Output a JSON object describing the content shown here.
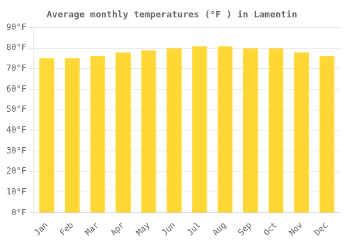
{
  "chart_data": {
    "type": "bar",
    "title": "Average monthly temperatures (°F ) in Lamentin",
    "categories": [
      "Jan",
      "Feb",
      "Mar",
      "Apr",
      "May",
      "Jun",
      "Jul",
      "Aug",
      "Sep",
      "Oct",
      "Nov",
      "Dec"
    ],
    "values": [
      75,
      75,
      76,
      78,
      79,
      80,
      81,
      81,
      80,
      80,
      78,
      76
    ],
    "color": "#FFD835",
    "ylim": [
      0,
      90
    ],
    "yticks": [
      {
        "value": 0,
        "label": "0°F"
      },
      {
        "value": 10,
        "label": "10°F"
      },
      {
        "value": 20,
        "label": "20°F"
      },
      {
        "value": 30,
        "label": "30°F"
      },
      {
        "value": 40,
        "label": "40°F"
      },
      {
        "value": 50,
        "label": "50°F"
      },
      {
        "value": 60,
        "label": "60°F"
      },
      {
        "value": 70,
        "label": "70°F"
      },
      {
        "value": 80,
        "label": "80°F"
      },
      {
        "value": 90,
        "label": "90°F"
      }
    ],
    "grid": true
  }
}
